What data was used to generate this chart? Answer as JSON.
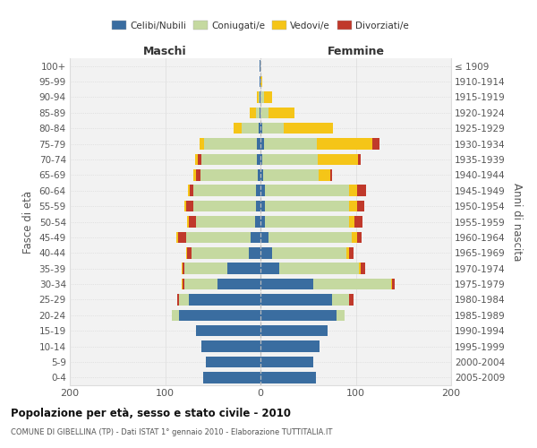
{
  "age_groups": [
    "0-4",
    "5-9",
    "10-14",
    "15-19",
    "20-24",
    "25-29",
    "30-34",
    "35-39",
    "40-44",
    "45-49",
    "50-54",
    "55-59",
    "60-64",
    "65-69",
    "70-74",
    "75-79",
    "80-84",
    "85-89",
    "90-94",
    "95-99",
    "100+"
  ],
  "birth_years": [
    "2005-2009",
    "2000-2004",
    "1995-1999",
    "1990-1994",
    "1985-1989",
    "1980-1984",
    "1975-1979",
    "1970-1974",
    "1965-1969",
    "1960-1964",
    "1955-1959",
    "1950-1954",
    "1945-1949",
    "1940-1944",
    "1935-1939",
    "1930-1934",
    "1925-1929",
    "1920-1924",
    "1915-1919",
    "1910-1914",
    "≤ 1909"
  ],
  "maschi": {
    "celibi": [
      60,
      57,
      62,
      68,
      85,
      75,
      45,
      35,
      12,
      10,
      6,
      5,
      5,
      3,
      4,
      4,
      2,
      1,
      1,
      1,
      1
    ],
    "coniugati": [
      0,
      0,
      0,
      0,
      8,
      10,
      35,
      45,
      60,
      68,
      62,
      65,
      65,
      60,
      58,
      55,
      18,
      4,
      1,
      0,
      0
    ],
    "divorziati": [
      0,
      0,
      0,
      0,
      0,
      2,
      2,
      2,
      5,
      8,
      7,
      8,
      4,
      5,
      4,
      0,
      0,
      0,
      0,
      0,
      0
    ],
    "vedovi": [
      0,
      0,
      0,
      0,
      0,
      0,
      1,
      1,
      1,
      2,
      2,
      2,
      2,
      2,
      3,
      5,
      8,
      6,
      2,
      0,
      0
    ]
  },
  "femmine": {
    "nubili": [
      58,
      55,
      62,
      70,
      80,
      75,
      55,
      20,
      12,
      8,
      5,
      5,
      5,
      3,
      2,
      4,
      2,
      0,
      0,
      0,
      0
    ],
    "coniugate": [
      0,
      0,
      0,
      0,
      8,
      18,
      82,
      83,
      78,
      88,
      88,
      88,
      88,
      58,
      58,
      55,
      22,
      8,
      4,
      0,
      0
    ],
    "vedove": [
      0,
      0,
      0,
      0,
      0,
      0,
      1,
      2,
      3,
      5,
      6,
      8,
      8,
      12,
      42,
      58,
      52,
      28,
      8,
      2,
      0
    ],
    "divorziate": [
      0,
      0,
      0,
      0,
      0,
      5,
      3,
      5,
      5,
      5,
      8,
      8,
      10,
      2,
      3,
      8,
      0,
      0,
      0,
      0,
      0
    ]
  },
  "colors": {
    "celibi": "#3a6da0",
    "coniugati": "#c5d9a0",
    "vedovi": "#f5c518",
    "divorziati": "#c0392b"
  },
  "title": "Popolazione per età, sesso e stato civile - 2010",
  "subtitle": "COMUNE DI GIBELLINA (TP) - Dati ISTAT 1° gennaio 2010 - Elaborazione TUTTITALIA.IT",
  "maschi_label": "Maschi",
  "femmine_label": "Femmine",
  "ylabel_left": "Fasce di età",
  "ylabel_right": "Anni di nascita",
  "xlim": 200,
  "bg_color": "#ffffff",
  "plot_bg_color": "#f2f2f2",
  "grid_color": "#cccccc",
  "legend_labels": [
    "Celibi/Nubili",
    "Coniugati/e",
    "Vedovi/e",
    "Divorziati/e"
  ]
}
